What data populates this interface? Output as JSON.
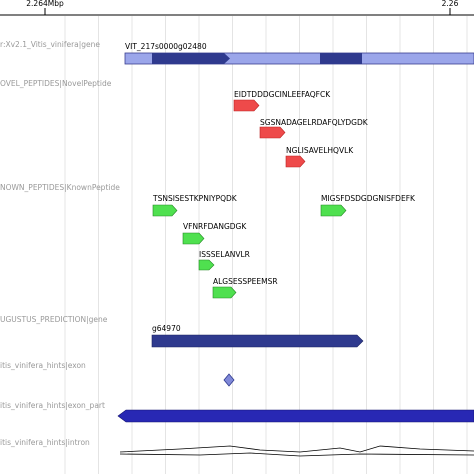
{
  "ruler": {
    "labels": [
      "2.264Mbp",
      "2.26"
    ]
  },
  "tracks": [
    {
      "label": "r:Xv2.1_Vitis_vinifera|gene",
      "features": [
        "VIT_217s0000g02480"
      ]
    },
    {
      "label": "OVEL_PEPTIDES|NovelPeptide",
      "features": [
        "EIDTDDDGCINLEEFAQFCK",
        "SGSNADAGELRDAFQLYDGDK",
        "NGLISAVELHQVLK"
      ]
    },
    {
      "label": "NOWN_PEPTIDES|KnownPeptide",
      "features": [
        "TSNSISESTKPNIYPQDK",
        "MIGSFDSDGDGNISFDEFK",
        "VFNRFDANGDGK",
        "ISSSELANVLR",
        "ALGSESSPEEMSR"
      ]
    },
    {
      "label": "UGUSTUS_PREDICTION|gene",
      "features": [
        "g64970"
      ]
    },
    {
      "label": "itis_vinifera_hints|exon"
    },
    {
      "label": "itis_vinifera_hints|exon_part"
    },
    {
      "label": "itis_vinifera_hints|intron"
    }
  ]
}
